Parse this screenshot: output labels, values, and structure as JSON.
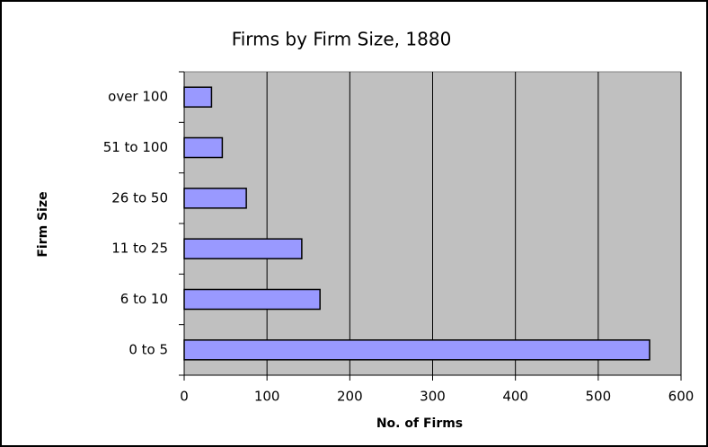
{
  "chart_data": {
    "type": "bar",
    "orientation": "horizontal",
    "title": "Firms by Firm Size, 1880",
    "x_label": "No. of Firms",
    "y_label": "Firm Size",
    "categories": [
      "0 to 5",
      "6 to 10",
      "11 to 25",
      "26 to 50",
      "51 to 100",
      "over 100"
    ],
    "values": [
      562,
      164,
      142,
      75,
      46,
      33
    ],
    "color": "#9999ff",
    "plot_background": "#c0c0c0",
    "xlim": [
      0,
      600
    ],
    "xticks": [
      0,
      100,
      200,
      300,
      400,
      500,
      600
    ],
    "grid": true
  }
}
